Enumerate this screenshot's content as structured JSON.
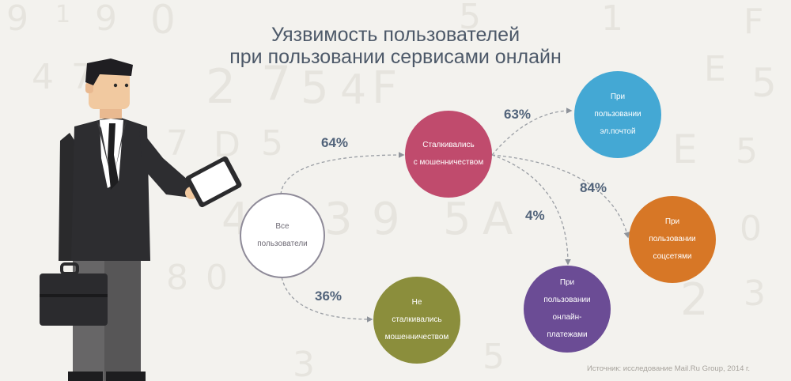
{
  "title": {
    "line1": "Уязвимость пользователей",
    "line2": "при пользовании сервисами онлайн"
  },
  "nodes": {
    "all_users": "Все\nпользователи",
    "encountered_fraud": "Сталкивались\nс мошенничеством",
    "not_encountered_fraud": "Не\nсталкивались\nмошенничеством",
    "email_use": "При\nпользовании\nэл.почтой",
    "online_payments": "При\nпользовании\nонлайн-\nплатежами",
    "social_networks": "При\nпользовании\nсоцсетями"
  },
  "percentages": {
    "encountered": "64%",
    "not_encountered": "36%",
    "email": "63%",
    "social": "84%",
    "payments": "4%"
  },
  "source": "Источник: исследование Mail.Ru Group, 2014 г.",
  "colors": {
    "title": "#4d5969",
    "encountered_fraud": "#c04b6d",
    "not_encountered_fraud": "#8b8e3c",
    "email_use": "#44a8d4",
    "online_payments": "#6b4c95",
    "social_networks": "#d77726",
    "percent_text": "#51637a"
  }
}
